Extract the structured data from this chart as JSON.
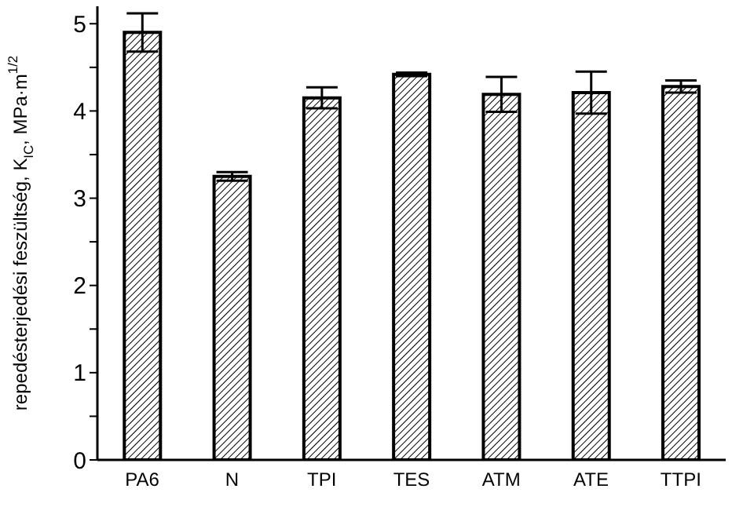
{
  "chart_data": {
    "type": "bar",
    "ylabel": "repedésterjedési feszültség, K$_{IC}$, MPa·m$^{1/2}$",
    "categories": [
      "PA6",
      "N",
      "TPI",
      "TES",
      "ATM",
      "ATE",
      "TTPI"
    ],
    "values": [
      4.9,
      3.25,
      4.15,
      4.42,
      4.19,
      4.21,
      4.28
    ],
    "errors": [
      0.22,
      0.05,
      0.12,
      0.02,
      0.2,
      0.24,
      0.07
    ],
    "color": "#000000",
    "ylim": [
      0,
      5.2
    ],
    "yticks": [
      0,
      {
        "value": 0.5,
        "label": null
      },
      1,
      {
        "value": 1.5,
        "label": null
      },
      2,
      {
        "value": 2.5,
        "label": null
      },
      3,
      {
        "value": 3.5,
        "label": null
      },
      4,
      {
        "value": 4.5,
        "label": null
      },
      5
    ],
    "grid": false,
    "legend": false
  }
}
